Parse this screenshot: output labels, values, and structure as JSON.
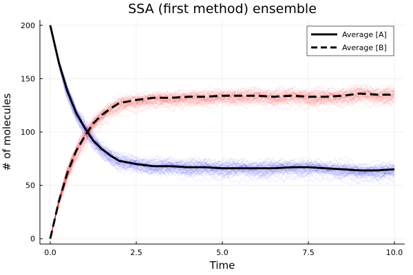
{
  "chart_data": {
    "type": "line",
    "title": "SSA (first method) ensemble",
    "xlabel": "Time",
    "ylabel": "# of molecules",
    "xlim": [
      -0.3,
      10.3
    ],
    "ylim": [
      -5,
      205
    ],
    "xticks": [
      0.0,
      2.5,
      5.0,
      7.5,
      10.0
    ],
    "xtick_labels": [
      "0.0",
      "2.5",
      "5.0",
      "7.5",
      "10.0"
    ],
    "yticks": [
      0,
      50,
      100,
      150,
      200
    ],
    "ytick_labels": [
      "0",
      "50",
      "100",
      "150",
      "200"
    ],
    "grid": true,
    "legend_position": "top-right",
    "ensemble": {
      "trajectories_per_species": 50,
      "species_A_color": "#0000ff",
      "species_B_color": "#ff0000",
      "opacity": 0.07
    },
    "series": [
      {
        "name": "Average [A]",
        "style": "solid",
        "color": "#000000",
        "x": [
          0,
          0.25,
          0.5,
          0.75,
          1.0,
          1.25,
          1.5,
          1.75,
          2.0,
          2.5,
          3.0,
          3.5,
          4.0,
          4.5,
          5.0,
          5.5,
          6.0,
          6.5,
          7.0,
          7.5,
          8.0,
          8.5,
          9.0,
          9.5,
          10.0
        ],
        "values": [
          200,
          165,
          138,
          118,
          104,
          92,
          84,
          78,
          73,
          70,
          68,
          68,
          67,
          67,
          66,
          66,
          66,
          66,
          67,
          67,
          66,
          65,
          64,
          64,
          65
        ]
      },
      {
        "name": "Average [B]",
        "style": "dashed",
        "color": "#000000",
        "x": [
          0,
          0.25,
          0.5,
          0.75,
          1.0,
          1.25,
          1.5,
          1.75,
          2.0,
          2.5,
          3.0,
          3.5,
          4.0,
          4.5,
          5.0,
          5.5,
          6.0,
          6.5,
          7.0,
          7.5,
          8.0,
          8.5,
          9.0,
          9.5,
          10.0
        ],
        "values": [
          0,
          35,
          62,
          82,
          96,
          108,
          116,
          122,
          127,
          130,
          132,
          132,
          133,
          133,
          134,
          134,
          134,
          133,
          134,
          133,
          133,
          134,
          136,
          135,
          135
        ]
      }
    ]
  }
}
